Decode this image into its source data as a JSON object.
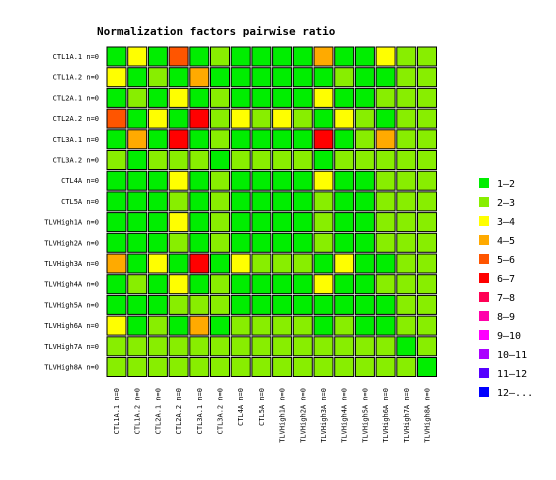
{
  "chart_data": {
    "type": "heatmap",
    "title": "Normalization factors pairwise ratio",
    "rows": [
      "CTL1A.1 n=0",
      "CTL1A.2 n=0",
      "CTL2A.1 n=0",
      "CTL2A.2 n=0",
      "CTL3A.1 n=0",
      "CTL3A.2 n=0",
      "CTL4A n=0",
      "CTL5A n=0",
      "TLVHigh1A n=0",
      "TLVHigh2A n=0",
      "TLVHigh3A n=0",
      "TLVHigh4A n=0",
      "TLVHigh5A n=0",
      "TLVHigh6A n=0",
      "TLVHigh7A n=0",
      "TLVHigh8A n=0"
    ],
    "columns": [
      "CTL1A.1 n=0",
      "CTL1A.2 n=0",
      "CTL2A.1 n=0",
      "CTL2A.2 n=0",
      "CTL3A.1 n=0",
      "CTL3A.2 n=0",
      "CTL4A n=0",
      "CTL5A n=0",
      "TLVHigh1A n=0",
      "TLVHigh2A n=0",
      "TLVHigh3A n=0",
      "TLVHigh4A n=0",
      "TLVHigh5A n=0",
      "TLVHigh6A n=0",
      "TLVHigh7A n=0",
      "TLVHigh8A n=0"
    ],
    "legend": {
      "placement": "right",
      "items": [
        {
          "label": "1–2",
          "color": "#00ee00"
        },
        {
          "label": "2–3",
          "color": "#88ee00"
        },
        {
          "label": "3–4",
          "color": "#ffff00"
        },
        {
          "label": "4–5",
          "color": "#ffaa00"
        },
        {
          "label": "5–6",
          "color": "#ff5500"
        },
        {
          "label": "6–7",
          "color": "#ff0000"
        },
        {
          "label": "7–8",
          "color": "#ff0055"
        },
        {
          "label": "8–9",
          "color": "#ff00aa"
        },
        {
          "label": "9–10",
          "color": "#ff00ff"
        },
        {
          "label": "10–11",
          "color": "#aa00ff"
        },
        {
          "label": "11–12",
          "color": "#5500ff"
        },
        {
          "label": "12–...",
          "color": "#0000ff"
        }
      ]
    },
    "cell_bins": [
      [
        0,
        2,
        0,
        4,
        0,
        1,
        0,
        0,
        0,
        0,
        3,
        0,
        0,
        2,
        1,
        1
      ],
      [
        2,
        0,
        1,
        0,
        3,
        0,
        0,
        0,
        0,
        0,
        0,
        1,
        0,
        0,
        1,
        1
      ],
      [
        0,
        1,
        0,
        2,
        0,
        1,
        0,
        0,
        0,
        0,
        2,
        0,
        0,
        1,
        1,
        1
      ],
      [
        4,
        0,
        2,
        0,
        5,
        1,
        2,
        1,
        2,
        1,
        0,
        2,
        1,
        0,
        1,
        1
      ],
      [
        0,
        3,
        0,
        5,
        0,
        1,
        0,
        0,
        0,
        0,
        5,
        0,
        1,
        3,
        1,
        1
      ],
      [
        1,
        0,
        1,
        1,
        1,
        0,
        1,
        1,
        1,
        1,
        0,
        1,
        1,
        1,
        1,
        1
      ],
      [
        0,
        0,
        0,
        2,
        0,
        1,
        0,
        0,
        0,
        0,
        2,
        0,
        0,
        1,
        1,
        1
      ],
      [
        0,
        0,
        0,
        1,
        0,
        1,
        0,
        0,
        0,
        0,
        1,
        0,
        0,
        1,
        1,
        1
      ],
      [
        0,
        0,
        0,
        2,
        0,
        1,
        0,
        0,
        0,
        0,
        1,
        0,
        0,
        1,
        1,
        1
      ],
      [
        0,
        0,
        0,
        1,
        0,
        1,
        0,
        0,
        0,
        0,
        1,
        0,
        0,
        1,
        1,
        1
      ],
      [
        3,
        0,
        2,
        0,
        5,
        0,
        2,
        1,
        1,
        1,
        0,
        2,
        0,
        0,
        1,
        1
      ],
      [
        0,
        1,
        0,
        2,
        0,
        1,
        0,
        0,
        0,
        0,
        2,
        0,
        0,
        1,
        1,
        1
      ],
      [
        0,
        0,
        0,
        1,
        1,
        1,
        0,
        0,
        0,
        0,
        0,
        0,
        0,
        0,
        1,
        1
      ],
      [
        2,
        0,
        1,
        0,
        3,
        0,
        1,
        1,
        1,
        1,
        0,
        1,
        0,
        0,
        1,
        1
      ],
      [
        1,
        1,
        1,
        1,
        1,
        1,
        1,
        1,
        1,
        1,
        1,
        1,
        1,
        1,
        0,
        1
      ],
      [
        1,
        1,
        1,
        1,
        1,
        1,
        1,
        1,
        1,
        1,
        1,
        1,
        1,
        1,
        1,
        0
      ]
    ]
  }
}
